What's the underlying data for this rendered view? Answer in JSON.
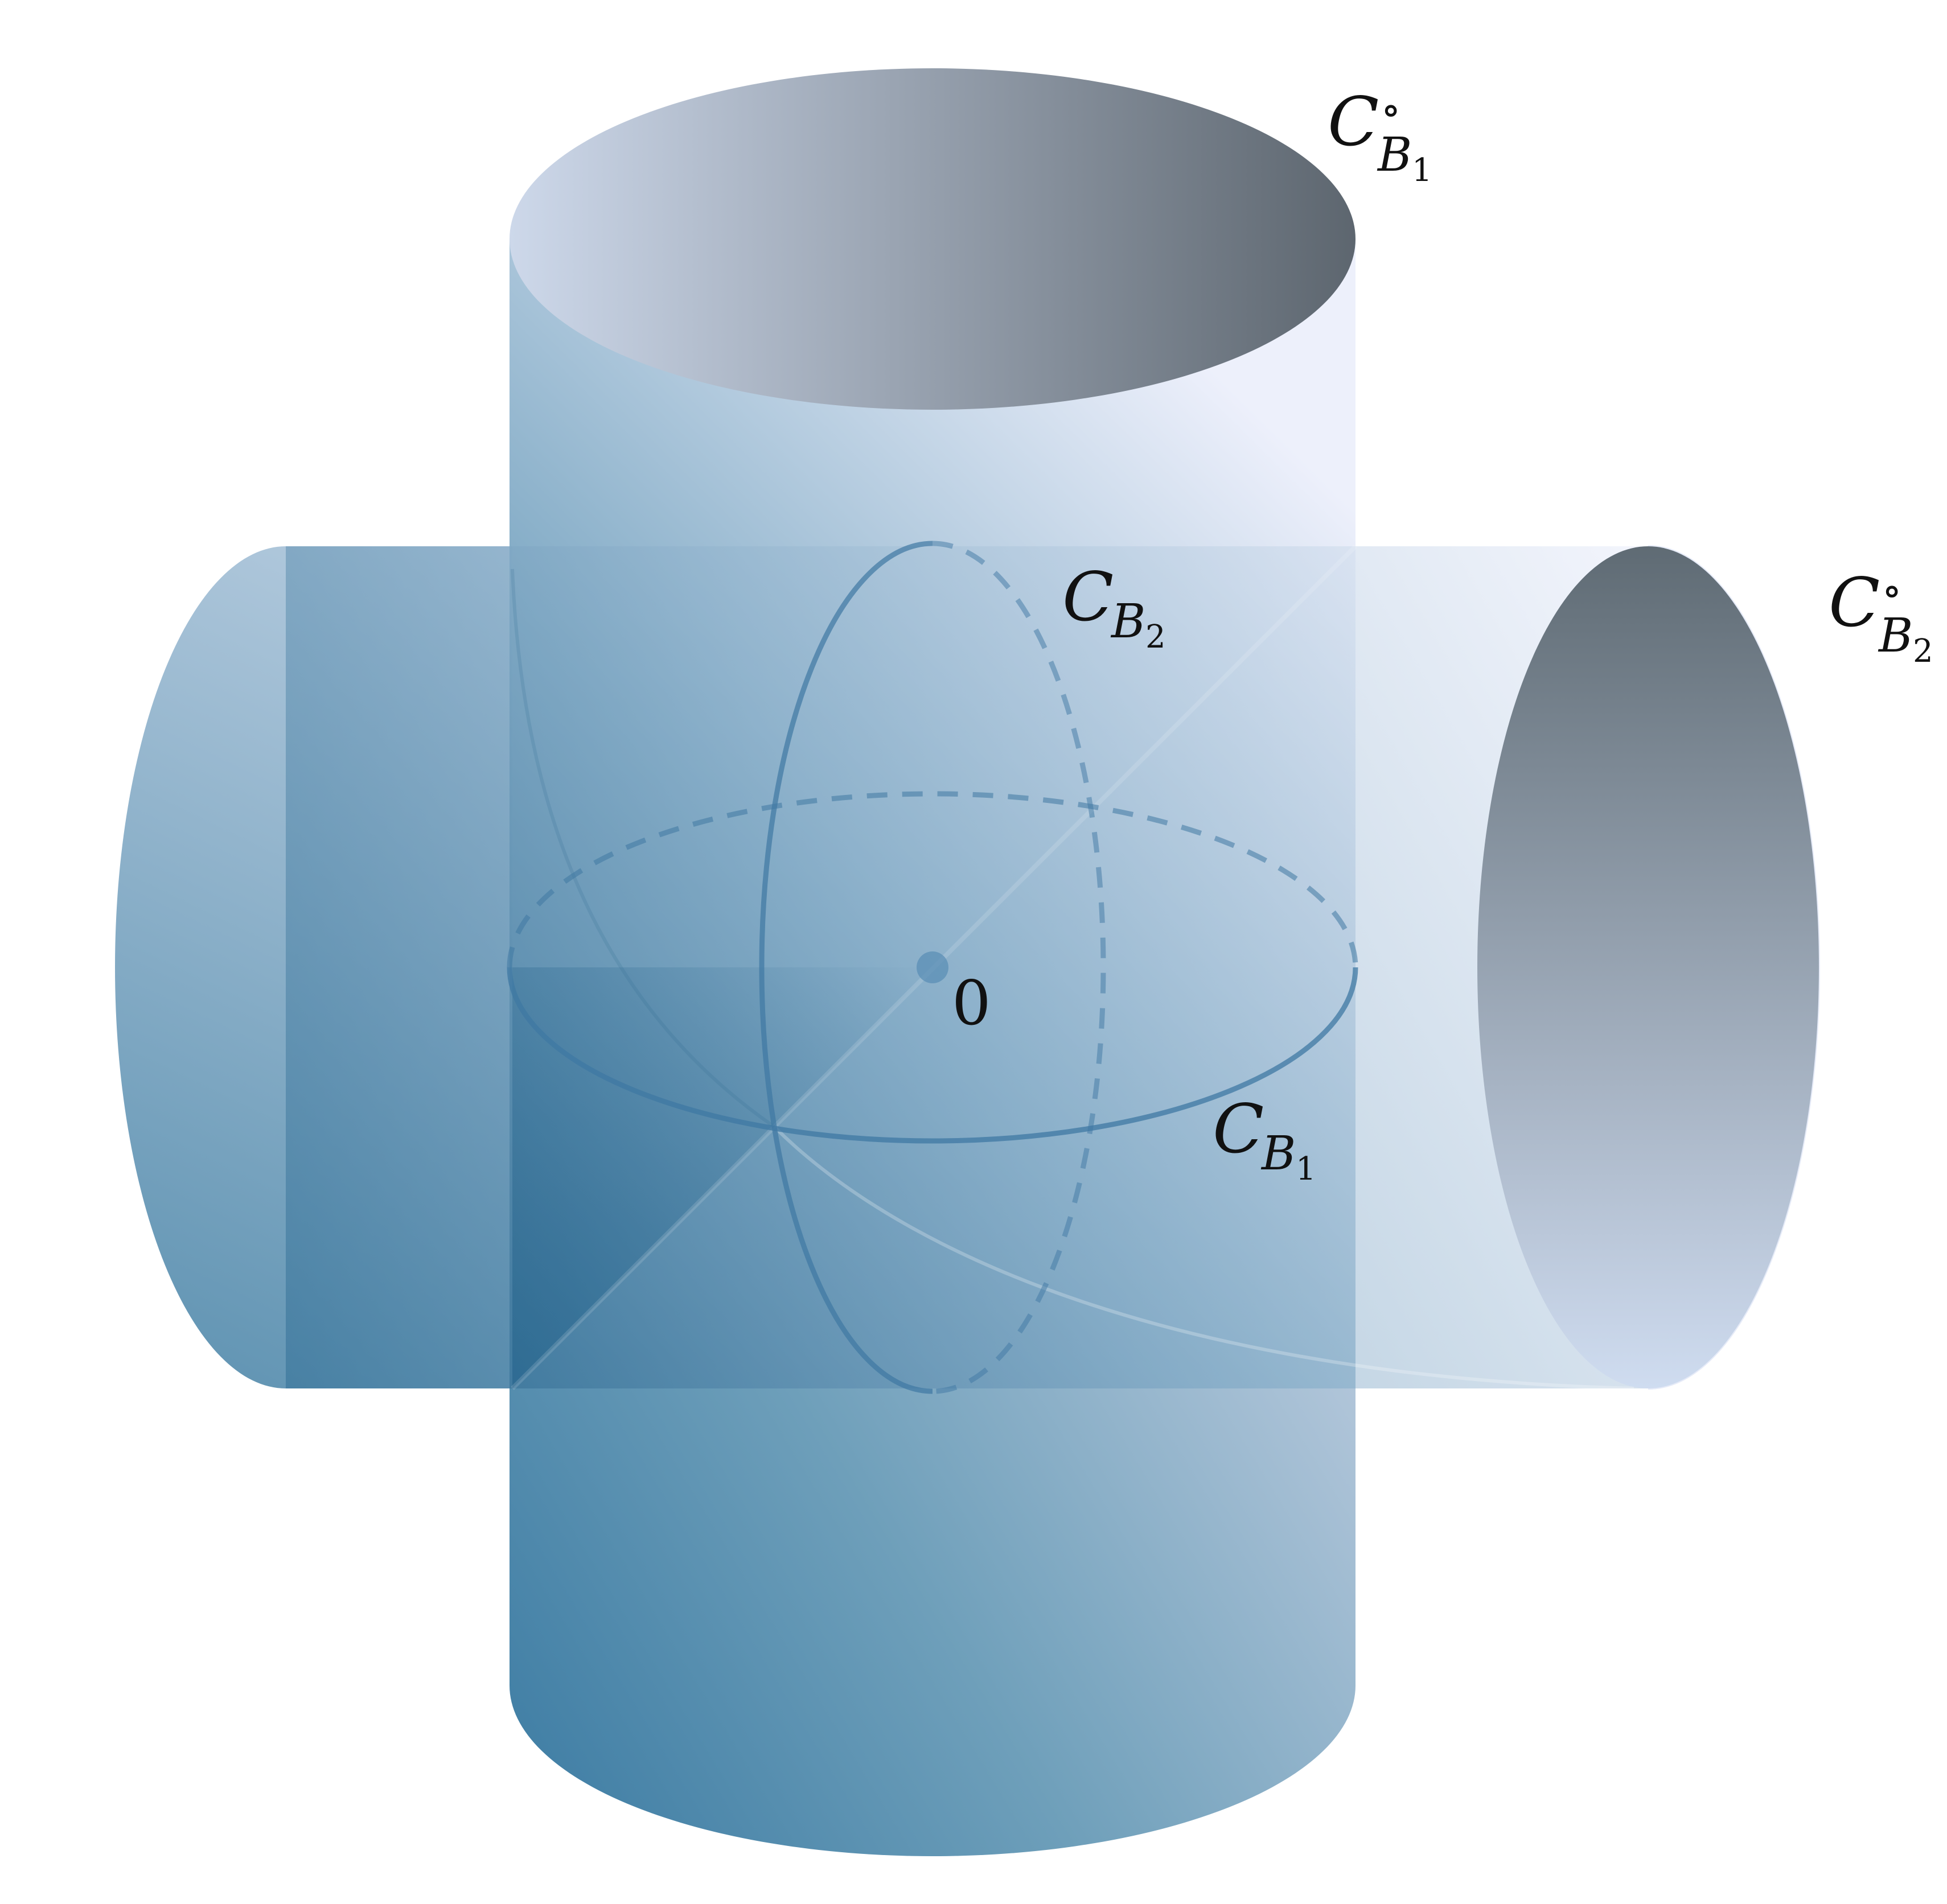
{
  "labels": {
    "top_rim_outer": {
      "main": "C",
      "sup": "∘",
      "sub": "B",
      "subsub": "1"
    },
    "right_rim_outer": {
      "main": "C",
      "sup": "∘",
      "sub": "B",
      "subsub": "2"
    },
    "vertical_circle": {
      "main": "C",
      "sub": "B",
      "subsub": "2"
    },
    "horizontal_circle": {
      "main": "C",
      "sub": "B",
      "subsub": "1"
    },
    "origin": "0"
  },
  "colors": {
    "deep_blue": "#2a6a92",
    "mid_blue": "#6e9fba",
    "light_blue": "#cdd8ea",
    "pale_lavender": "#eceffb",
    "interior_dark": "#5d666f",
    "interior_light": "#c9d4e8",
    "circle_stroke": "#3f78a3"
  }
}
